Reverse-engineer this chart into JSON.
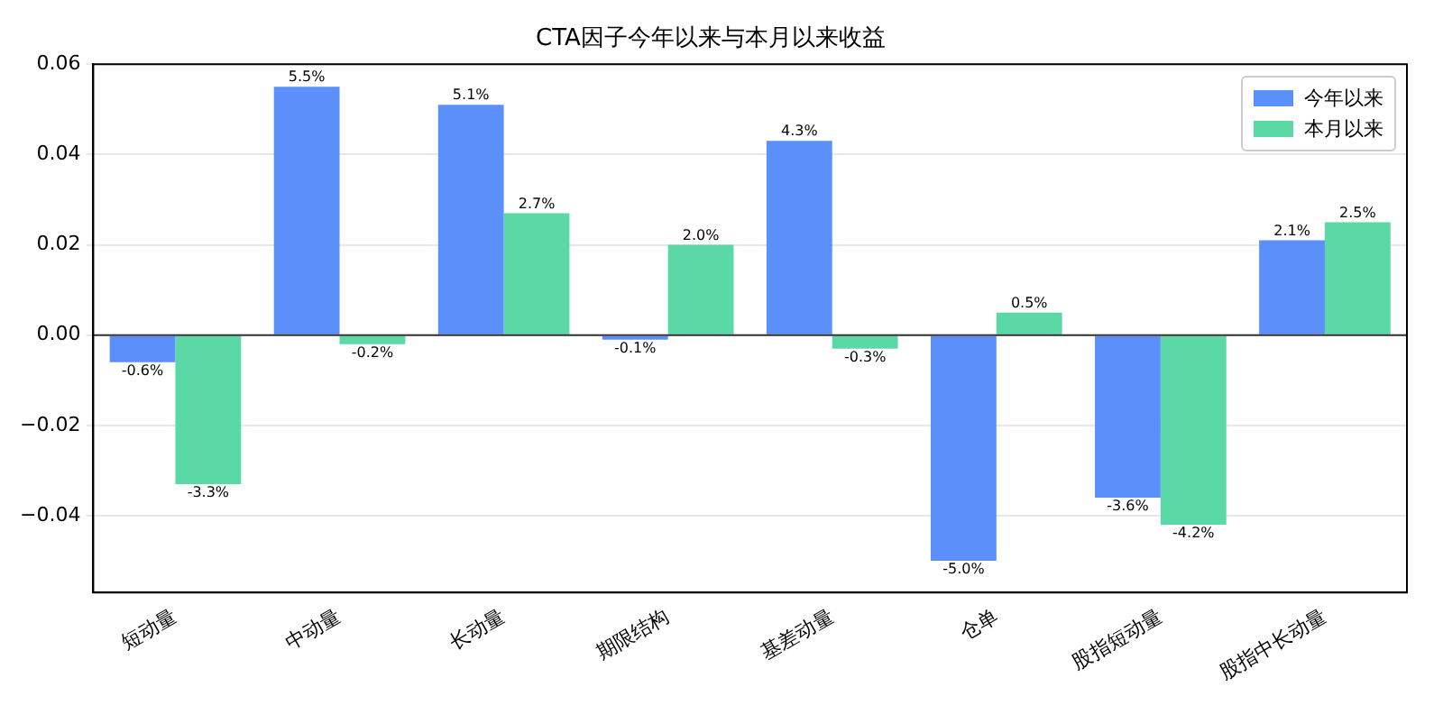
{
  "chart_data": {
    "type": "bar",
    "title": "CTA因子今年以来与本月以来收益",
    "categories": [
      "短动量",
      "中动量",
      "长动量",
      "期限结构",
      "基差动量",
      "仓单",
      "股指短动量",
      "股指中长动量"
    ],
    "series": [
      {
        "name": "今年以来",
        "color": "#5b8ff9",
        "values": [
          -0.006,
          0.055,
          0.051,
          -0.001,
          0.043,
          -0.05,
          -0.036,
          0.021
        ],
        "value_labels": [
          "-0.6%",
          "5.5%",
          "5.1%",
          "-0.1%",
          "4.3%",
          "-5.0%",
          "-3.6%",
          "2.1%"
        ]
      },
      {
        "name": "本月以来",
        "color": "#5ad8a6",
        "values": [
          -0.033,
          -0.002,
          0.027,
          0.02,
          -0.003,
          0.005,
          -0.042,
          0.025
        ],
        "value_labels": [
          "-3.3%",
          "-0.2%",
          "2.7%",
          "2.0%",
          "-0.3%",
          "0.5%",
          "-4.2%",
          "2.5%"
        ]
      }
    ],
    "ylim": [
      -0.057,
      0.06
    ],
    "yticks": [
      {
        "value": -0.04,
        "label": "−0.04"
      },
      {
        "value": -0.02,
        "label": "−0.02"
      },
      {
        "value": 0,
        "label": "0.00"
      },
      {
        "value": 0.02,
        "label": "0.02"
      },
      {
        "value": 0.04,
        "label": "0.04"
      },
      {
        "value": 0.06,
        "label": "0.06"
      }
    ],
    "grid": "y",
    "legend": "top right",
    "ref_lines": [
      {
        "axis": "y",
        "value": 0,
        "color": "#333333"
      }
    ]
  }
}
